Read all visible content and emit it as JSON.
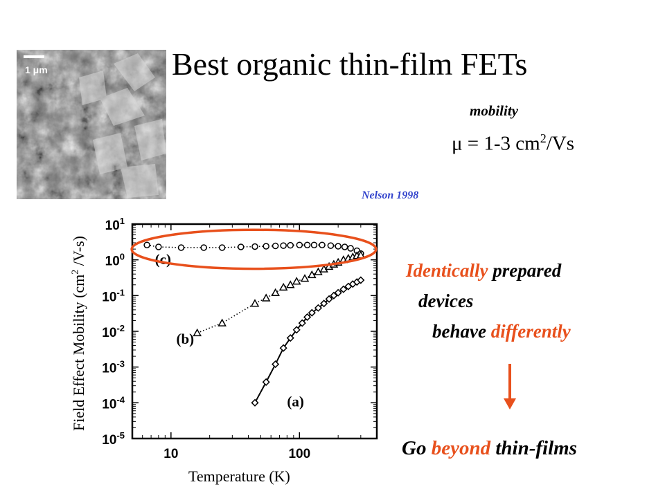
{
  "slide": {
    "title": "Best organic thin-film FETs",
    "mobility_label": "mobility",
    "mobility_value_prefix": "μ = 1-3 cm",
    "mobility_value_sup": "2",
    "mobility_value_suffix": "/Vs",
    "citation": "Nelson 1998",
    "note_line1_accent": "Identically",
    "note_line1_rest": " prepared",
    "note_line2": "devices",
    "note_line3_rest": "behave ",
    "note_line3_accent": "differently",
    "conclusion_accent": "beyond",
    "conclusion_pre": "Go ",
    "conclusion_post": " thin-films",
    "accent_color": "#e8501c",
    "citation_color": "#3344cc"
  },
  "micrograph": {
    "scale_bar_label": "1 μm"
  },
  "chart_data": {
    "type": "scatter",
    "xlabel": "Temperature  (K)",
    "ylabel_pre": "Field Effect Mobility  (cm",
    "ylabel_sup": "2",
    "ylabel_post": " /V-s)",
    "x_scale": "log",
    "y_scale": "log",
    "xlim": [
      5,
      400
    ],
    "ylim": [
      1e-05,
      10
    ],
    "x_ticks": [
      {
        "value": 10,
        "label": "10"
      },
      {
        "value": 100,
        "label": "100"
      }
    ],
    "y_ticks": [
      {
        "value": 10,
        "base": "10",
        "exp": "1"
      },
      {
        "value": 1,
        "base": "10",
        "exp": "0"
      },
      {
        "value": 0.1,
        "base": "10",
        "exp": "-1"
      },
      {
        "value": 0.01,
        "base": "10",
        "exp": "-2"
      },
      {
        "value": 0.001,
        "base": "10",
        "exp": "-3"
      },
      {
        "value": 0.0001,
        "base": "10",
        "exp": "-4"
      },
      {
        "value": 1e-05,
        "base": "10",
        "exp": "-5"
      }
    ],
    "grid": false,
    "highlight": {
      "series": "(c)",
      "color": "#e8501c"
    },
    "series": [
      {
        "name": "(c)",
        "marker": "circle",
        "line": "dotted",
        "label_at": {
          "x": 7.5,
          "y": 0.75
        },
        "x": [
          6.5,
          8,
          12,
          18,
          25,
          35,
          45,
          55,
          65,
          75,
          85,
          100,
          115,
          130,
          150,
          175,
          200,
          225,
          250,
          280,
          300
        ],
        "y": [
          2.6,
          2.3,
          2.2,
          2.2,
          2.2,
          2.3,
          2.35,
          2.4,
          2.45,
          2.5,
          2.55,
          2.6,
          2.6,
          2.6,
          2.6,
          2.5,
          2.4,
          2.3,
          2.1,
          1.8,
          1.5
        ]
      },
      {
        "name": "(b)",
        "marker": "triangle",
        "line": "dotted",
        "label_at": {
          "x": 11,
          "y": 0.0045
        },
        "x": [
          16,
          25,
          45,
          55,
          65,
          75,
          85,
          95,
          110,
          125,
          140,
          155,
          170,
          185,
          200,
          220,
          240,
          260,
          280,
          300
        ],
        "y": [
          0.009,
          0.017,
          0.06,
          0.085,
          0.12,
          0.17,
          0.2,
          0.25,
          0.3,
          0.38,
          0.46,
          0.55,
          0.65,
          0.75,
          0.85,
          1.0,
          1.1,
          1.2,
          1.3,
          1.35
        ]
      },
      {
        "name": "(a)",
        "marker": "diamond",
        "line": "solid",
        "label_at": {
          "x": 80,
          "y": 8e-05
        },
        "x": [
          45,
          55,
          65,
          75,
          85,
          95,
          105,
          115,
          125,
          140,
          155,
          170,
          185,
          200,
          220,
          240,
          260,
          280,
          300
        ],
        "y": [
          0.0001,
          0.00038,
          0.0012,
          0.0034,
          0.0065,
          0.011,
          0.017,
          0.025,
          0.033,
          0.045,
          0.06,
          0.08,
          0.1,
          0.12,
          0.15,
          0.18,
          0.21,
          0.24,
          0.27
        ]
      }
    ]
  }
}
